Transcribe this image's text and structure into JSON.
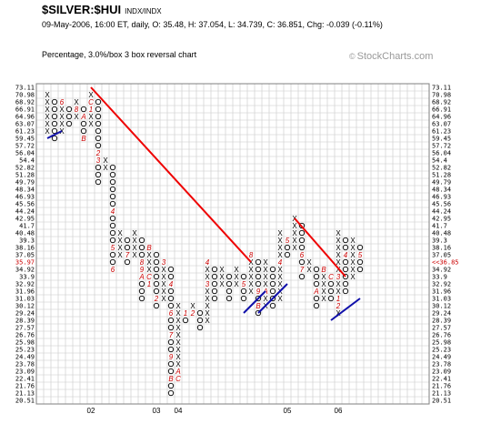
{
  "header": {
    "symbol": "$SILVER:$HUI",
    "exchange": "INDX/INDX",
    "quote_line": "09-May-2006, 16:00 ET, daily, O: 35.48, H: 37.054, L: 34.739, C: 36.851, Chg: -0.039 (-0.11%)",
    "subtitle": "Percentage, 3.0%/box 3 box reversal chart",
    "brand": "StockCharts.com",
    "brand_symbol": "©"
  },
  "colors": {
    "grid": "#c8c8c8",
    "frame": "#7f7f7f",
    "trend_down": "#ee0000",
    "trend_up": "#1010aa",
    "month_marker": "#cc0000",
    "current_price": "#cc0000"
  },
  "chart_data": {
    "type": "point-and-figure",
    "box_size_percent": 3.0,
    "reversal_boxes": 3,
    "price_levels": [
      "73.11",
      "70.98",
      "68.92",
      "66.91",
      "64.96",
      "63.07",
      "61.23",
      "59.45",
      "57.72",
      "56.04",
      "54.4",
      "52.82",
      "51.28",
      "49.79",
      "48.34",
      "46.93",
      "45.56",
      "44.24",
      "42.95",
      "41.7",
      "40.48",
      "39.3",
      "38.16",
      "37.05",
      "35.97",
      "34.92",
      "33.9",
      "32.92",
      "31.96",
      "31.03",
      "30.12",
      "29.24",
      "28.39",
      "27.57",
      "26.76",
      "25.98",
      "25.23",
      "24.49",
      "23.78",
      "23.09",
      "22.41",
      "21.76",
      "21.13",
      "20.51"
    ],
    "right_price_levels": [
      "73.11",
      "70.98",
      "68.92",
      "66.91",
      "64.96",
      "63.07",
      "61.23",
      "59.45",
      "57.72",
      "56.04",
      "54.4",
      "52.82",
      "51.28",
      "49.79",
      "48.34",
      "46.93",
      "45.56",
      "44.24",
      "42.95",
      "41.7",
      "40.48",
      "39.3",
      "38.16",
      "37.05",
      "<<36.85",
      "34.92",
      "33.9",
      "32.92",
      "31.96",
      "31.03",
      "30.12",
      "29.24",
      "28.39",
      "27.57",
      "26.76",
      "25.98",
      "25.23",
      "24.49",
      "23.78",
      "23.09",
      "22.41",
      "21.76",
      "21.13",
      "20.51"
    ],
    "highlighted_left_level": "35.97",
    "current_price_label": "<<36.85",
    "x_labels": [
      {
        "text": "02",
        "col": 6
      },
      {
        "text": "03",
        "col": 15
      },
      {
        "text": "04",
        "col": 18
      },
      {
        "text": "05",
        "col": 33
      },
      {
        "text": "06",
        "col": 40
      }
    ],
    "columns": [
      {
        "type": "X",
        "low": "61.23",
        "high": "70.98",
        "marks": {}
      },
      {
        "type": "O",
        "low": "59.45",
        "high": "68.92",
        "marks": {}
      },
      {
        "type": "X",
        "low": "61.23",
        "high": "68.92",
        "marks": {
          "68.92": "6"
        }
      },
      {
        "type": "O",
        "low": "63.07",
        "high": "66.91",
        "marks": {
          "68.92": "7"
        }
      },
      {
        "type": "X",
        "low": "64.96",
        "high": "68.92",
        "marks": {
          "66.91": "8"
        }
      },
      {
        "type": "O",
        "low": "59.45",
        "high": "66.91",
        "marks": {
          "64.96": "A",
          "59.45": "B"
        }
      },
      {
        "type": "X",
        "low": "63.07",
        "high": "70.98",
        "marks": {
          "68.92": "C",
          "66.91": "1"
        }
      },
      {
        "type": "O",
        "low": "49.79",
        "high": "68.92",
        "marks": {
          "56.04": "2",
          "54.4": "3"
        }
      },
      {
        "type": "X",
        "low": "52.82",
        "high": "54.4",
        "marks": {}
      },
      {
        "type": "O",
        "low": "34.92",
        "high": "52.82",
        "marks": {
          "44.24": "4",
          "38.16": "5",
          "34.92": "6"
        }
      },
      {
        "type": "X",
        "low": "37.05",
        "high": "40.48",
        "marks": {}
      },
      {
        "type": "O",
        "low": "35.97",
        "high": "39.3",
        "marks": {
          "37.05": "7"
        }
      },
      {
        "type": "X",
        "low": "37.05",
        "high": "40.48",
        "marks": {}
      },
      {
        "type": "O",
        "low": "31.03",
        "high": "39.3",
        "marks": {
          "35.97": "8",
          "34.92": "9",
          "33.9": "A"
        }
      },
      {
        "type": "X",
        "low": "32.92",
        "high": "38.16",
        "marks": {
          "38.16": "B",
          "33.9": "C",
          "32.92": "1"
        }
      },
      {
        "type": "O",
        "low": "30.12",
        "high": "37.05",
        "marks": {
          "31.03": "2"
        }
      },
      {
        "type": "X",
        "low": "31.03",
        "high": "35.97",
        "marks": {
          "35.97": "3"
        }
      },
      {
        "type": "O",
        "low": "21.13",
        "high": "34.92",
        "marks": {
          "32.92": "4",
          "29.24": "6",
          "26.76": "7",
          "24.49": "9",
          "22.41": "B"
        }
      },
      {
        "type": "X",
        "low": "22.41",
        "high": "30.12",
        "marks": {
          "23.09": "A",
          "22.41": "C"
        }
      },
      {
        "type": "O",
        "low": "28.39",
        "high": "29.24",
        "marks": {
          "29.24": "1"
        }
      },
      {
        "type": "X",
        "low": "29.24",
        "high": "30.12",
        "marks": {
          "29.24": "2"
        }
      },
      {
        "type": "O",
        "low": "27.57",
        "high": "29.24",
        "marks": {}
      },
      {
        "type": "X",
        "low": "28.39",
        "high": "35.97",
        "marks": {
          "32.92": "3",
          "35.97": "4"
        }
      },
      {
        "type": "O",
        "low": "31.03",
        "high": "34.92",
        "marks": {}
      },
      {
        "type": "X",
        "low": "32.92",
        "high": "34.92",
        "marks": {}
      },
      {
        "type": "O",
        "low": "31.03",
        "high": "33.9",
        "marks": {}
      },
      {
        "type": "X",
        "low": "32.92",
        "high": "34.92",
        "marks": {}
      },
      {
        "type": "O",
        "low": "31.03",
        "high": "33.9",
        "marks": {
          "32.92": "5"
        }
      },
      {
        "type": "X",
        "low": "31.96",
        "high": "37.05",
        "marks": {
          "37.05": "8"
        }
      },
      {
        "type": "O",
        "low": "29.24",
        "high": "35.97",
        "marks": {
          "31.96": "9",
          "30.12": "B"
        }
      },
      {
        "type": "X",
        "low": "30.12",
        "high": "35.97",
        "marks": {
          "31.96": "A"
        }
      },
      {
        "type": "O",
        "low": "30.12",
        "high": "34.92",
        "marks": {}
      },
      {
        "type": "X",
        "low": "31.03",
        "high": "40.48",
        "marks": {
          "35.97": "4"
        }
      },
      {
        "type": "O",
        "low": "37.05",
        "high": "39.3",
        "marks": {
          "39.3": "5"
        }
      },
      {
        "type": "X",
        "low": "38.16",
        "high": "42.95",
        "marks": {}
      },
      {
        "type": "O",
        "low": "33.9",
        "high": "41.7",
        "marks": {
          "37.05": "6",
          "34.92": "7"
        }
      },
      {
        "type": "X",
        "low": "34.92",
        "high": "35.97",
        "marks": {}
      },
      {
        "type": "O",
        "low": "30.12",
        "high": "34.92",
        "marks": {
          "31.96": "A"
        }
      },
      {
        "type": "X",
        "low": "31.03",
        "high": "34.92",
        "marks": {
          "34.92": "B"
        }
      },
      {
        "type": "O",
        "low": "31.03",
        "high": "33.9",
        "marks": {
          "33.9": "C"
        }
      },
      {
        "type": "X",
        "low": "29.24",
        "high": "40.48",
        "marks": {
          "33.9": "3",
          "31.03": "1",
          "30.12": "2"
        }
      },
      {
        "type": "O",
        "low": "31.96",
        "high": "39.3",
        "marks": {
          "37.05": "4"
        }
      },
      {
        "type": "X",
        "low": "33.9",
        "high": "39.3",
        "marks": {}
      },
      {
        "type": "O",
        "low": "34.92",
        "high": "38.16",
        "marks": {
          "37.05": "5"
        }
      }
    ],
    "trendlines": [
      {
        "type": "bearish-resistance",
        "from": {
          "col": 6,
          "price": "73.11"
        },
        "to": {
          "col": 28,
          "price": "35.97"
        }
      },
      {
        "type": "bearish-resistance",
        "from": {
          "col": 34,
          "price": "42.95"
        },
        "to": {
          "col": 41,
          "price": "33.9"
        }
      },
      {
        "type": "bullish-support",
        "from": {
          "col": 0,
          "price": "59.45"
        },
        "to": {
          "col": 2,
          "price": "61.23"
        }
      },
      {
        "type": "bullish-support",
        "from": {
          "col": 27,
          "price": "29.24"
        },
        "to": {
          "col": 30,
          "price": "31.96"
        }
      },
      {
        "type": "bullish-support",
        "from": {
          "col": 29,
          "price": "29.24"
        },
        "to": {
          "col": 33,
          "price": "32.92"
        }
      },
      {
        "type": "bullish-support",
        "from": {
          "col": 39,
          "price": "28.39"
        },
        "to": {
          "col": 43,
          "price": "31.03"
        }
      }
    ]
  }
}
